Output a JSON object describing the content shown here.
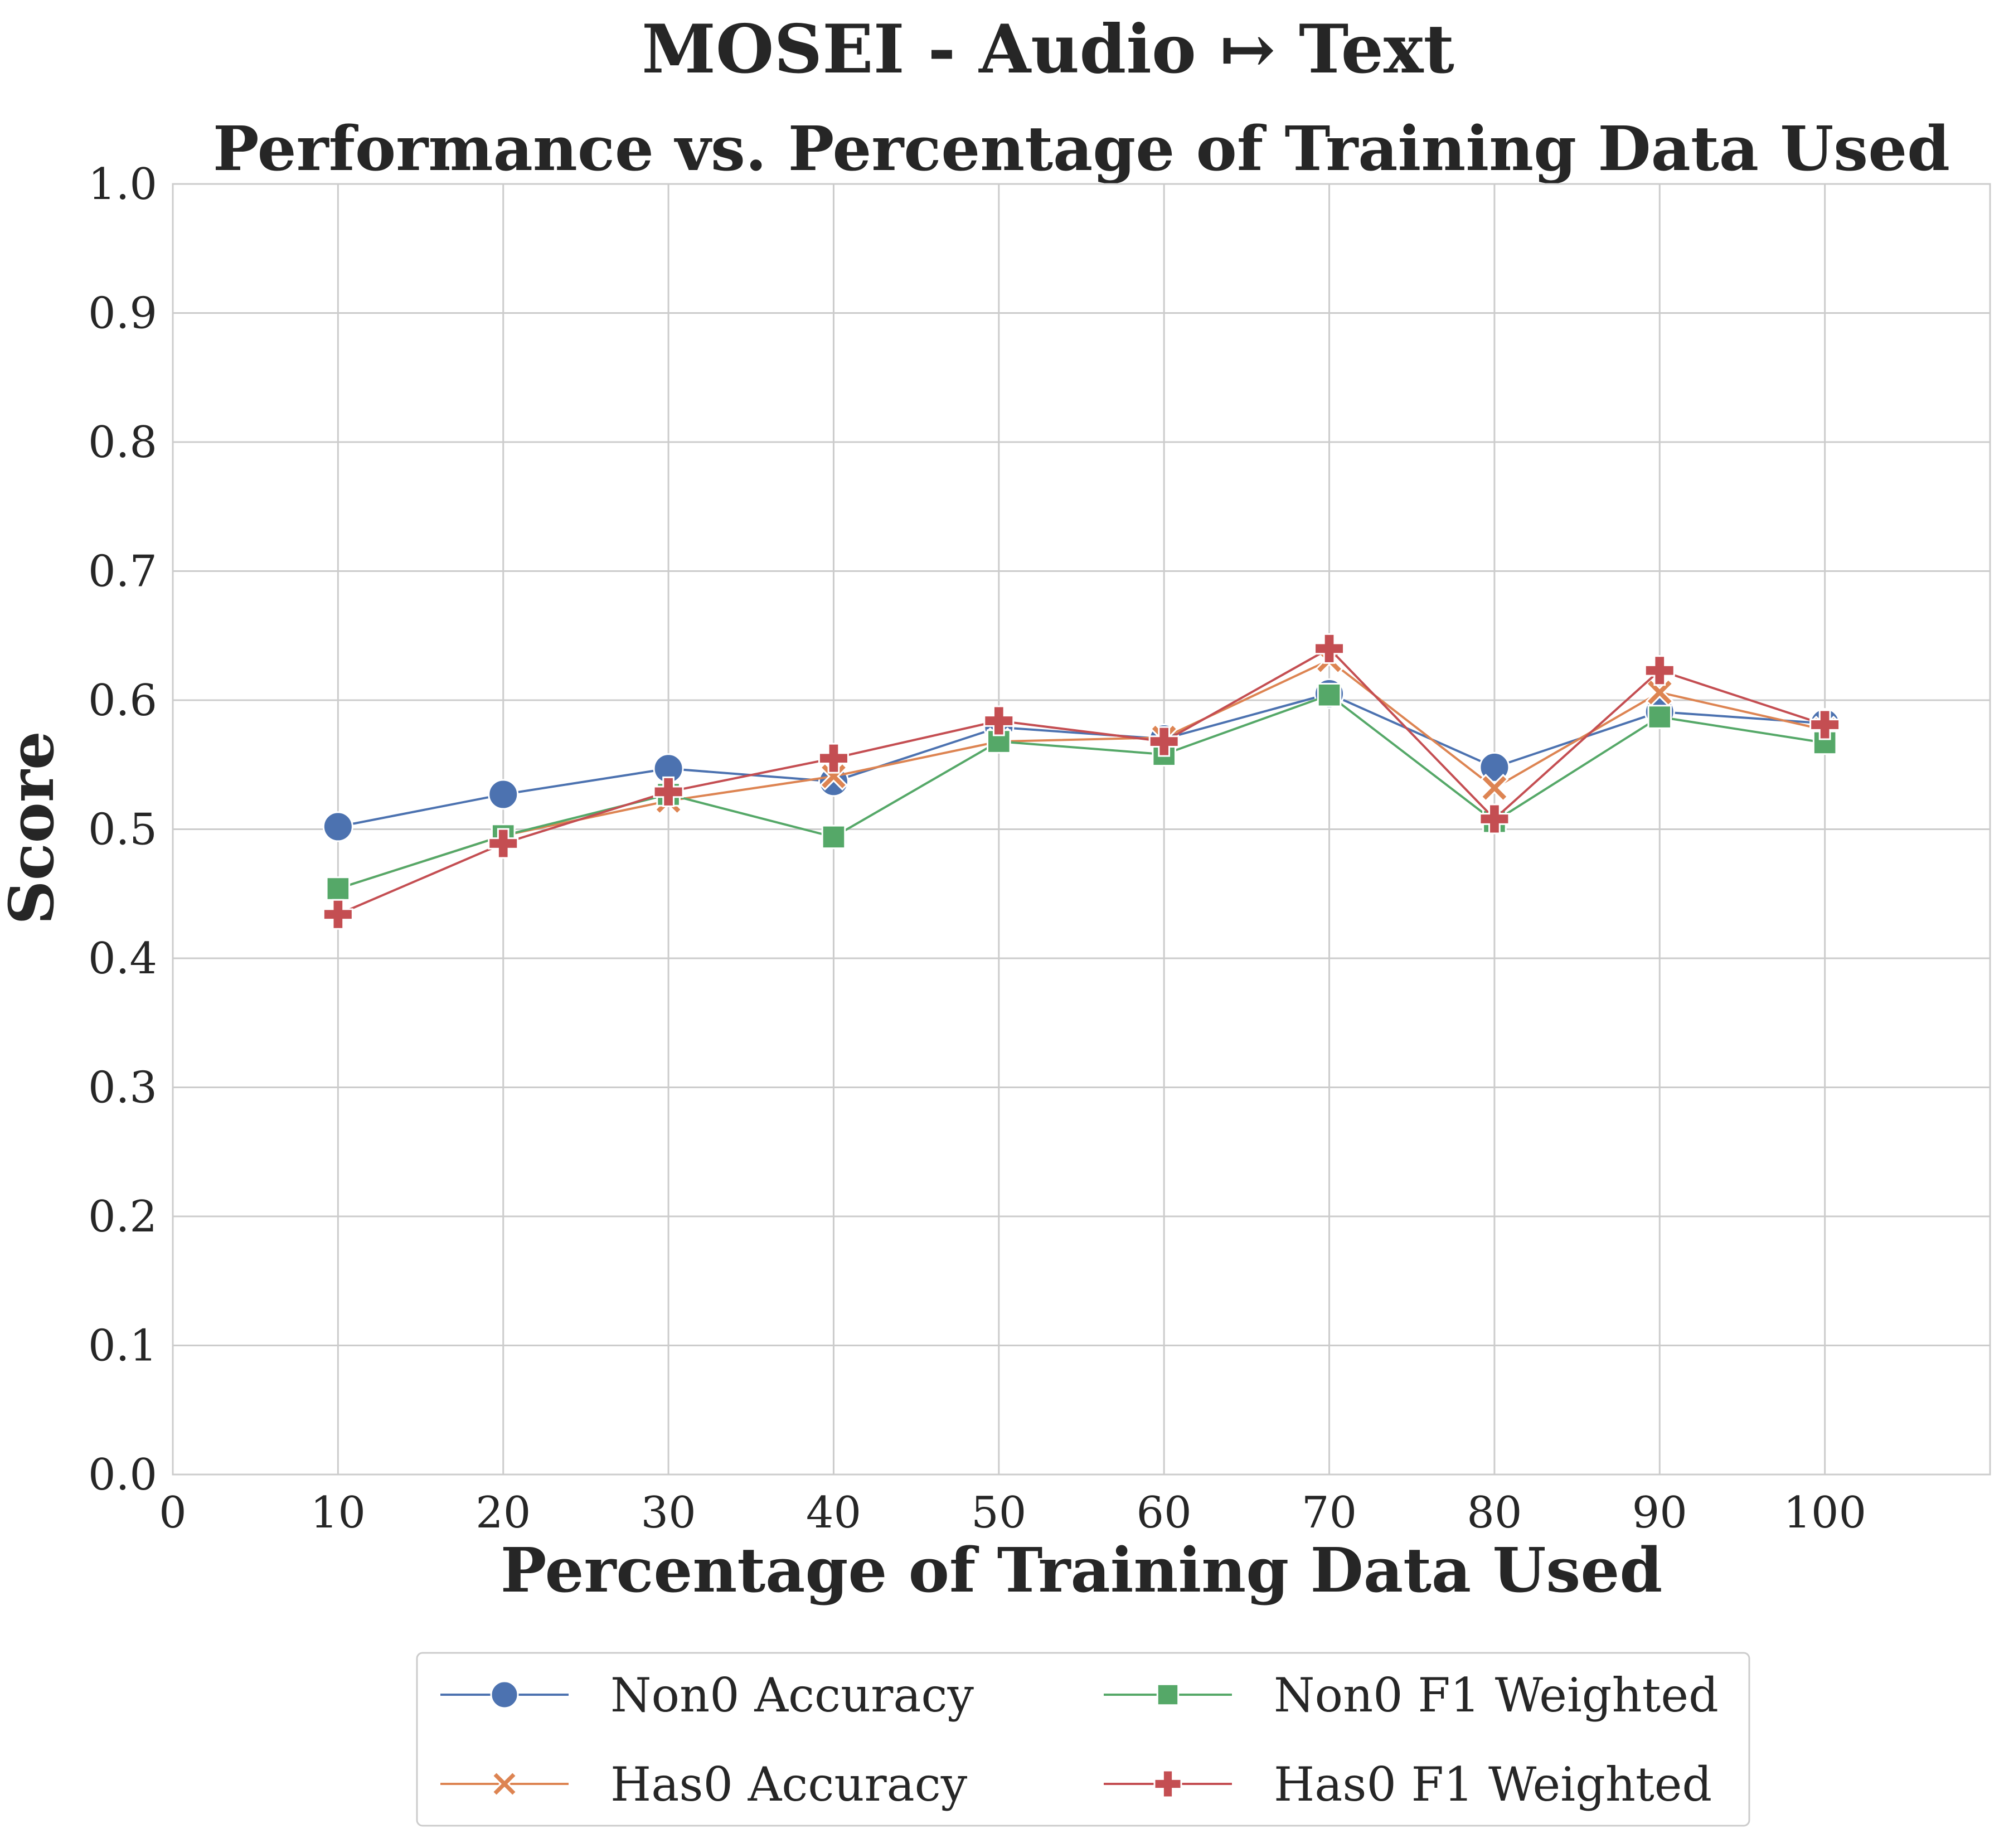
{
  "chart_data": {
    "type": "line",
    "title": "MOSEI - Audio ↦ Text",
    "subtitle": "Performance vs. Percentage of Training Data Used",
    "xlabel": "Percentage of Training Data Used",
    "ylabel": "Score",
    "xlim": [
      0,
      110
    ],
    "ylim": [
      0,
      1.0
    ],
    "xticks": [
      "0",
      "10",
      "20",
      "30",
      "40",
      "50",
      "60",
      "70",
      "80",
      "90",
      "100"
    ],
    "yticks": [
      "0.0",
      "0.1",
      "0.2",
      "0.3",
      "0.4",
      "0.5",
      "0.6",
      "0.7",
      "0.8",
      "0.9",
      "1.0"
    ],
    "grid": true,
    "legend_position": "bottom-center",
    "x": [
      10,
      20,
      30,
      40,
      50,
      60,
      70,
      80,
      90,
      100
    ],
    "series": [
      {
        "name": "Non0 Accuracy",
        "marker": "circle",
        "color": "#4c72b0",
        "values": [
          0.502,
          0.527,
          0.547,
          0.537,
          0.579,
          0.57,
          0.605,
          0.548,
          0.591,
          0.582
        ]
      },
      {
        "name": "Has0 Accuracy",
        "marker": "x",
        "color": "#dd8452",
        "values": [
          0.454,
          0.495,
          0.522,
          0.541,
          0.568,
          0.571,
          0.631,
          0.532,
          0.606,
          0.577
        ]
      },
      {
        "name": "Non0 F1 Weighted",
        "marker": "square",
        "color": "#55a868",
        "values": [
          0.454,
          0.495,
          0.527,
          0.494,
          0.568,
          0.558,
          0.604,
          0.506,
          0.587,
          0.567
        ]
      },
      {
        "name": "Has0 F1 Weighted",
        "marker": "plus",
        "color": "#c44e52",
        "values": [
          0.434,
          0.489,
          0.529,
          0.555,
          0.584,
          0.568,
          0.64,
          0.508,
          0.623,
          0.581
        ]
      }
    ]
  }
}
